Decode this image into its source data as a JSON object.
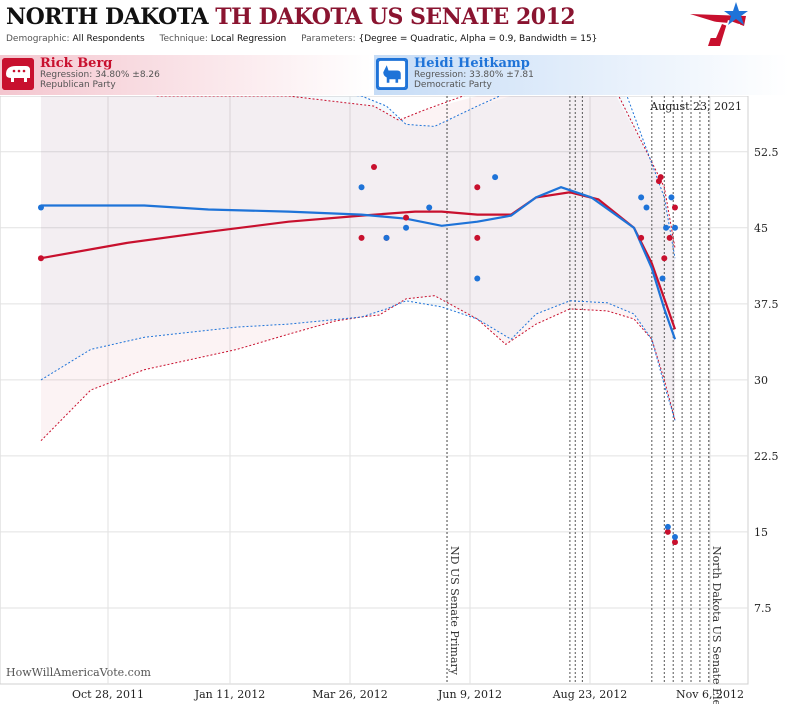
{
  "header": {
    "state": "NORTH DAKOTA",
    "race": "TH DAKOTA US SENATE 2012",
    "demographic_label": "Demographic:",
    "demographic": "All Respondents",
    "technique_label": "Technique:",
    "technique": "Local Regression",
    "parameters_label": "Parameters:",
    "parameters": "{Degree = Quadratic, Alpha = 0.9, Bandwidth = 15}"
  },
  "candidates": {
    "rep": {
      "name": "Rick Berg",
      "regression": "Regression: 34.80% ±8.26",
      "party": "Republican Party",
      "icon": "elephant-icon",
      "color": "#c8102e"
    },
    "dem": {
      "name": "Heidi Heitkamp",
      "regression": "Regression: 33.80% ±7.81",
      "party": "Democratic Party",
      "icon": "donkey-icon",
      "color": "#1e73d8"
    }
  },
  "watermark": "HowWillAmericaVote.com",
  "chart_data": {
    "type": "line",
    "x_ticks": [
      "Oct 28, 2011",
      "Jan 11, 2012",
      "Mar 26, 2012",
      "Jun 9, 2012",
      "Aug 23, 2012",
      "Nov 6, 2012"
    ],
    "y_ticks": [
      "7.5",
      "15",
      "22.5",
      "30",
      "37.5",
      "45",
      "52.5"
    ],
    "ylim": [
      0,
      58
    ],
    "x_range": [
      "2011-10-05",
      "2012-11-28"
    ],
    "grid": true,
    "date_label": "August 23, 2021",
    "events": [
      {
        "date": "2012-06-12",
        "label": "ND US Senate Primary"
      },
      {
        "date": "2012-11-06",
        "label": "North Dakota US Senate Election"
      }
    ],
    "extra_vlines": [
      "2012-08-20",
      "2012-08-23",
      "2012-08-27",
      "2012-10-05",
      "2012-10-12",
      "2012-10-17",
      "2012-10-22",
      "2012-10-27",
      "2012-11-01"
    ],
    "series": [
      {
        "name": "Rick Berg",
        "color": "#c8102e",
        "points": [
          [
            "2011-10-28",
            42
          ],
          [
            "2012-04-25",
            44
          ],
          [
            "2012-05-02",
            51
          ],
          [
            "2012-05-09",
            44
          ],
          [
            "2012-05-20",
            46
          ],
          [
            "2012-06-29",
            49
          ],
          [
            "2012-06-29",
            44
          ],
          [
            "2012-09-29",
            44
          ],
          [
            "2012-10-09",
            49.6
          ],
          [
            "2012-10-10",
            50
          ],
          [
            "2012-10-12",
            42
          ],
          [
            "2012-10-14",
            15
          ],
          [
            "2012-10-15",
            44
          ],
          [
            "2012-10-18",
            47
          ],
          [
            "2012-10-18",
            14
          ]
        ],
        "trend": [
          [
            "2011-10-28",
            42
          ],
          [
            "2011-12-15",
            43.5
          ],
          [
            "2012-01-30",
            44.6
          ],
          [
            "2012-03-15",
            45.6
          ],
          [
            "2012-04-25",
            46.2
          ],
          [
            "2012-05-25",
            46.6
          ],
          [
            "2012-06-09",
            46.6
          ],
          [
            "2012-06-29",
            46.3
          ],
          [
            "2012-07-18",
            46.3
          ],
          [
            "2012-08-01",
            48
          ],
          [
            "2012-08-20",
            48.5
          ],
          [
            "2012-09-05",
            47.8
          ],
          [
            "2012-09-25",
            45
          ],
          [
            "2012-10-05",
            41.5
          ],
          [
            "2012-10-12",
            38
          ],
          [
            "2012-10-18",
            35
          ]
        ],
        "upper": [
          [
            "2012-01-01",
            58
          ],
          [
            "2012-03-15",
            58
          ],
          [
            "2012-05-02",
            57
          ],
          [
            "2012-05-16",
            55.6
          ],
          [
            "2012-05-30",
            56.6
          ],
          [
            "2012-06-29",
            58.5
          ],
          [
            "2012-09-15",
            58.5
          ],
          [
            "2012-10-12",
            49
          ],
          [
            "2012-10-18",
            43
          ]
        ],
        "lower": [
          [
            "2011-10-28",
            24
          ],
          [
            "2011-11-25",
            29
          ],
          [
            "2011-12-25",
            31
          ],
          [
            "2012-02-15",
            33
          ],
          [
            "2012-03-15",
            34.5
          ],
          [
            "2012-04-10",
            35.8
          ],
          [
            "2012-04-25",
            36.2
          ],
          [
            "2012-05-05",
            36.4
          ],
          [
            "2012-05-20",
            38
          ],
          [
            "2012-06-05",
            38.3
          ],
          [
            "2012-06-29",
            36
          ],
          [
            "2012-07-15",
            33.5
          ],
          [
            "2012-08-01",
            35.5
          ],
          [
            "2012-08-20",
            37
          ],
          [
            "2012-09-10",
            36.8
          ],
          [
            "2012-09-25",
            36
          ],
          [
            "2012-10-05",
            34
          ],
          [
            "2012-10-12",
            30
          ],
          [
            "2012-10-18",
            26
          ]
        ]
      },
      {
        "name": "Heidi Heitkamp",
        "color": "#1e73d8",
        "points": [
          [
            "2011-10-28",
            47
          ],
          [
            "2012-04-25",
            49
          ],
          [
            "2012-05-09",
            44
          ],
          [
            "2012-05-20",
            45
          ],
          [
            "2012-06-02",
            47
          ],
          [
            "2012-06-29",
            40
          ],
          [
            "2012-07-09",
            50
          ],
          [
            "2012-09-29",
            48
          ],
          [
            "2012-10-02",
            47
          ],
          [
            "2012-10-11",
            40
          ],
          [
            "2012-10-13",
            45
          ],
          [
            "2012-10-14",
            15.5
          ],
          [
            "2012-10-16",
            48
          ],
          [
            "2012-10-18",
            45
          ],
          [
            "2012-10-18",
            14.5
          ]
        ],
        "trend": [
          [
            "2011-10-28",
            47.2
          ],
          [
            "2011-12-25",
            47.2
          ],
          [
            "2012-01-30",
            46.8
          ],
          [
            "2012-03-15",
            46.6
          ],
          [
            "2012-04-25",
            46.3
          ],
          [
            "2012-05-20",
            45.9
          ],
          [
            "2012-06-09",
            45.2
          ],
          [
            "2012-06-29",
            45.6
          ],
          [
            "2012-07-18",
            46.2
          ],
          [
            "2012-08-01",
            48
          ],
          [
            "2012-08-15",
            49
          ],
          [
            "2012-09-01",
            48
          ],
          [
            "2012-09-25",
            45
          ],
          [
            "2012-10-05",
            41
          ],
          [
            "2012-10-12",
            37
          ],
          [
            "2012-10-18",
            34
          ]
        ],
        "upper": [
          [
            "2011-10-28",
            58.5
          ],
          [
            "2012-03-15",
            58.5
          ],
          [
            "2012-04-25",
            58
          ],
          [
            "2012-05-09",
            57
          ],
          [
            "2012-05-20",
            55.2
          ],
          [
            "2012-06-05",
            55
          ],
          [
            "2012-06-29",
            57
          ],
          [
            "2012-07-18",
            58.5
          ],
          [
            "2012-09-20",
            58.5
          ],
          [
            "2012-10-12",
            48
          ],
          [
            "2012-10-18",
            42
          ]
        ],
        "lower": [
          [
            "2011-10-28",
            30
          ],
          [
            "2011-11-25",
            33
          ],
          [
            "2011-12-25",
            34.2
          ],
          [
            "2012-02-15",
            35.2
          ],
          [
            "2012-03-15",
            35.5
          ],
          [
            "2012-04-25",
            36.2
          ],
          [
            "2012-05-09",
            37
          ],
          [
            "2012-05-20",
            37.8
          ],
          [
            "2012-06-09",
            37.2
          ],
          [
            "2012-06-29",
            36
          ],
          [
            "2012-07-18",
            34
          ],
          [
            "2012-08-01",
            36.5
          ],
          [
            "2012-08-20",
            37.8
          ],
          [
            "2012-09-10",
            37.6
          ],
          [
            "2012-09-25",
            36.5
          ],
          [
            "2012-10-05",
            34
          ],
          [
            "2012-10-12",
            29.5
          ],
          [
            "2012-10-18",
            26
          ]
        ]
      }
    ]
  }
}
